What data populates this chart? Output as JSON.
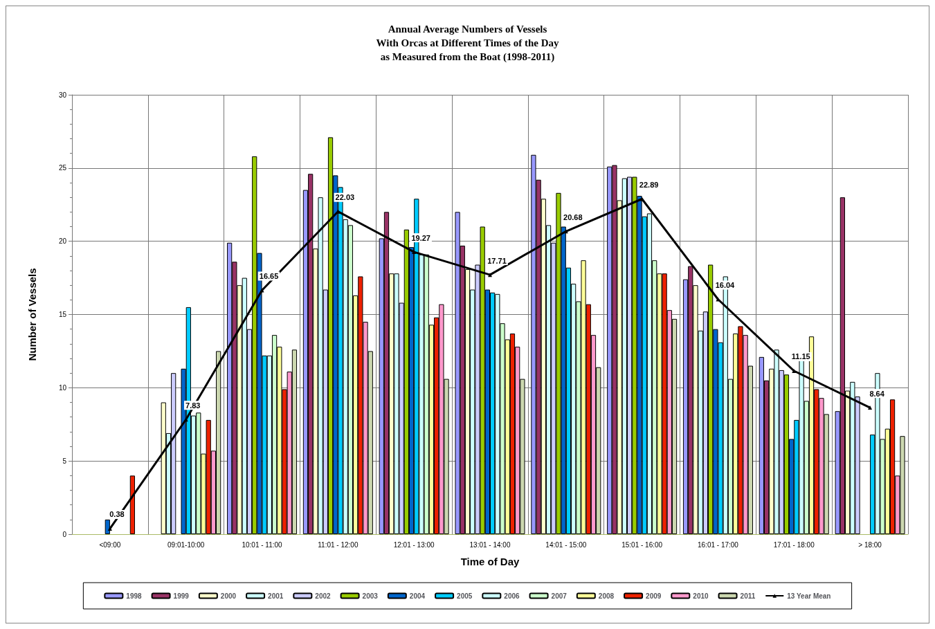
{
  "chart_data": {
    "type": "bar",
    "title": "Annual Average Numbers of Vessels\nWith Orcas at Different Times of the Day\nas Measured from the Boat (1998-2011)",
    "xlabel": "Time of Day",
    "ylabel": "Number of Vessels",
    "categories": [
      "<09:00",
      "09:01-10:00",
      "10:01 - 11:00",
      "11:01 - 12:00",
      "12:01 - 13:00",
      "13:01 - 14:00",
      "14:01 - 15:00",
      "15:01 - 16:00",
      "16:01 - 17:00",
      "17:01 - 18:00",
      "> 18:00"
    ],
    "ylim": [
      0,
      30
    ],
    "yticks": [
      0,
      5,
      10,
      15,
      20,
      25,
      30
    ],
    "grid": true,
    "legend": "bottom",
    "series": [
      {
        "name": "1998",
        "color": "#9999ff",
        "values": [
          null,
          null,
          19.9,
          23.5,
          20.2,
          22.0,
          25.9,
          25.1,
          17.4,
          12.1,
          8.4
        ]
      },
      {
        "name": "1999",
        "color": "#993366",
        "values": [
          null,
          null,
          18.6,
          24.6,
          22.0,
          19.7,
          24.2,
          25.2,
          18.3,
          10.5,
          23.0
        ]
      },
      {
        "name": "2000",
        "color": "#ffffcc",
        "values": [
          null,
          9.0,
          17.0,
          19.5,
          17.8,
          18.1,
          22.9,
          22.8,
          17.0,
          11.3,
          9.8
        ]
      },
      {
        "name": "2001",
        "color": "#ccffff",
        "values": [
          null,
          6.9,
          17.5,
          23.0,
          17.8,
          16.7,
          21.1,
          24.3,
          13.9,
          12.6,
          10.4
        ]
      },
      {
        "name": "2002",
        "color": "#ccccff",
        "values": [
          null,
          11.0,
          14.0,
          16.7,
          15.8,
          18.4,
          19.9,
          24.4,
          15.2,
          11.2,
          9.4
        ]
      },
      {
        "name": "2003",
        "color": "#99cc00",
        "values": [
          null,
          null,
          25.8,
          27.1,
          20.8,
          21.0,
          23.3,
          24.4,
          18.4,
          10.9,
          null
        ]
      },
      {
        "name": "2004",
        "color": "#0066cc",
        "values": [
          1.0,
          11.3,
          19.2,
          24.5,
          19.6,
          16.7,
          21.0,
          23.1,
          14.0,
          6.5,
          null
        ]
      },
      {
        "name": "2005",
        "color": "#00ccff",
        "values": [
          null,
          15.5,
          12.2,
          23.7,
          22.9,
          16.5,
          18.2,
          21.7,
          13.1,
          7.8,
          6.8
        ]
      },
      {
        "name": "2006",
        "color": "#ccffff",
        "values": [
          null,
          8.1,
          12.2,
          21.5,
          19.1,
          16.4,
          17.1,
          21.9,
          17.6,
          11.9,
          11.0
        ]
      },
      {
        "name": "2007",
        "color": "#ccffcc",
        "values": [
          null,
          8.3,
          13.6,
          21.1,
          19.1,
          14.4,
          15.9,
          18.7,
          10.6,
          9.1,
          6.5
        ]
      },
      {
        "name": "2008",
        "color": "#ffff99",
        "values": [
          null,
          5.5,
          12.8,
          16.3,
          14.3,
          13.3,
          18.7,
          17.8,
          13.7,
          13.5,
          7.2
        ]
      },
      {
        "name": "2009",
        "color": "#ee2200",
        "values": [
          4.0,
          7.8,
          9.9,
          17.6,
          14.8,
          13.7,
          15.7,
          17.8,
          14.2,
          9.9,
          9.2
        ]
      },
      {
        "name": "2010",
        "color": "#ff99cc",
        "values": [
          null,
          5.7,
          11.1,
          14.5,
          15.7,
          12.8,
          13.6,
          15.3,
          13.6,
          9.3,
          4.0
        ]
      },
      {
        "name": "2011",
        "color": "#ccd8b0",
        "values": [
          null,
          12.5,
          12.6,
          12.5,
          10.6,
          10.6,
          11.4,
          14.7,
          11.5,
          8.2,
          6.7
        ]
      },
      {
        "name": "13 Year Mean",
        "type": "line",
        "color": "#000000",
        "marker": "triangle",
        "data_labels": true,
        "values": [
          0.38,
          7.83,
          16.65,
          22.03,
          19.27,
          17.71,
          20.68,
          22.89,
          16.04,
          11.15,
          8.64
        ]
      }
    ]
  }
}
